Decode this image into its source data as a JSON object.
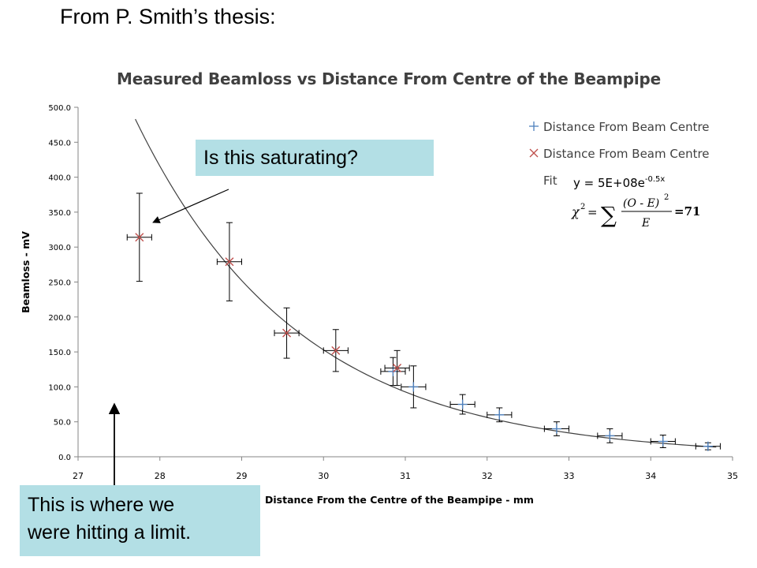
{
  "slide": {
    "heading": "From P. Smith’s thesis:"
  },
  "chart_data": {
    "type": "scatter",
    "title": "Measured Beamloss vs Distance From Centre of the Beampipe",
    "xlabel": "Distance From the Centre of the Beampipe - mm",
    "ylabel": "Beamloss - mV",
    "xlim": [
      27,
      35
    ],
    "ylim": [
      0,
      500
    ],
    "x_ticks": [
      "27",
      "28",
      "29",
      "30",
      "31",
      "32",
      "33",
      "34",
      "35"
    ],
    "y_ticks": [
      "0.0",
      "50.0",
      "100.0",
      "150.0",
      "200.0",
      "250.0",
      "300.0",
      "350.0",
      "400.0",
      "450.0",
      "500.0"
    ],
    "grid": false,
    "legend_position": "top-right",
    "series": [
      {
        "name": "Distance From Beam Centre",
        "marker": "plus",
        "color": "#4f81bd",
        "points": [
          {
            "x": 30.85,
            "y": 122,
            "xerr": 0.15,
            "yerr": 20
          },
          {
            "x": 31.1,
            "y": 100,
            "xerr": 0.15,
            "yerr": 30
          },
          {
            "x": 31.7,
            "y": 75,
            "xerr": 0.15,
            "yerr": 14
          },
          {
            "x": 32.15,
            "y": 60,
            "xerr": 0.15,
            "yerr": 10
          },
          {
            "x": 32.85,
            "y": 40,
            "xerr": 0.15,
            "yerr": 10
          },
          {
            "x": 33.5,
            "y": 30,
            "xerr": 0.15,
            "yerr": 10
          },
          {
            "x": 34.15,
            "y": 22,
            "xerr": 0.15,
            "yerr": 9
          },
          {
            "x": 34.7,
            "y": 15,
            "xerr": 0.15,
            "yerr": 5
          }
        ]
      },
      {
        "name": "Distance From Beam Centre",
        "marker": "cross",
        "color": "#c0504d",
        "points": [
          {
            "x": 27.75,
            "y": 314,
            "xerr": 0.15,
            "yerr": 63
          },
          {
            "x": 28.85,
            "y": 279,
            "xerr": 0.15,
            "yerr": 56
          },
          {
            "x": 29.55,
            "y": 177,
            "xerr": 0.15,
            "yerr": 36
          },
          {
            "x": 30.15,
            "y": 152,
            "xerr": 0.15,
            "yerr": 30
          },
          {
            "x": 30.9,
            "y": 127,
            "xerr": 0.15,
            "yerr": 25
          }
        ]
      }
    ],
    "fit": {
      "name": "Fit",
      "equation": "y = 5E+08e",
      "exponent": "-0.5x",
      "amplitude": 500000000,
      "rate": -0.5,
      "x_range": [
        27.7,
        34.8
      ],
      "color": "#404040"
    },
    "chi_squared": {
      "symbol": "χ",
      "power": "2",
      "equals": "=",
      "sum": "∑",
      "numerator": "(O - E)",
      "numerator_power": "2",
      "denominator": "E",
      "value": "=71"
    }
  },
  "callouts": {
    "top": "Is this saturating?",
    "bottom_lines": [
      "This is where we",
      "were hitting a limit."
    ]
  },
  "colors": {
    "callout_background": "#b3dfe5",
    "axis": "#868686"
  }
}
